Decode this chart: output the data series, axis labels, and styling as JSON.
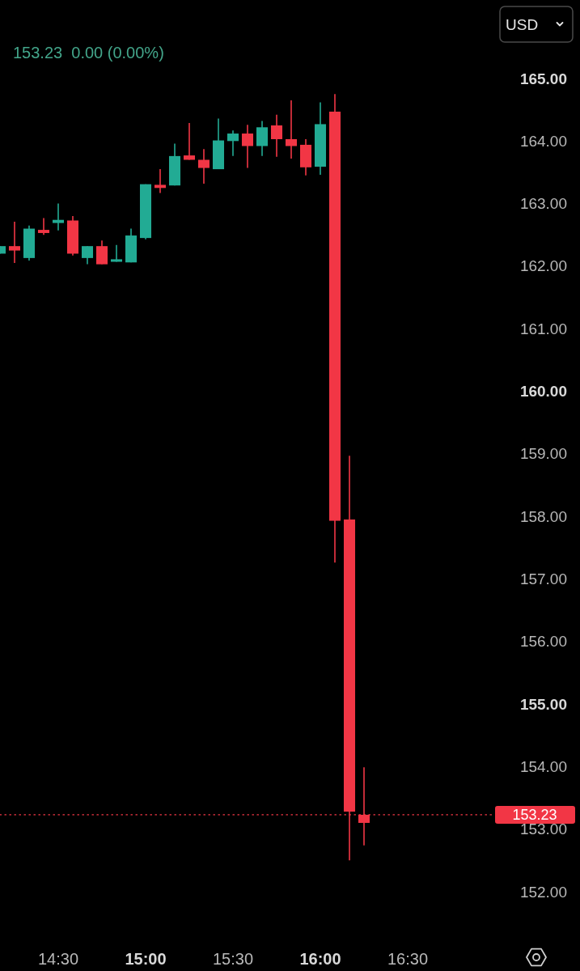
{
  "chart_data": {
    "type": "candlestick",
    "subtitle": "153.23  0.00 (0.00%)",
    "ylabel": "USD",
    "x": [
      14.1667,
      14.25,
      14.3333,
      14.4167,
      14.5,
      14.5833,
      14.6667,
      14.75,
      14.8333,
      14.9167,
      15,
      15.0833,
      15.1667,
      15.25,
      15.3333,
      15.4167,
      15.5,
      15.5833,
      15.6667,
      15.75,
      15.8333,
      15.9167,
      16,
      16.0833,
      16.1667,
      16.25
    ],
    "ohlc": [
      [
        162.2,
        162.32,
        162.2,
        162.32
      ],
      [
        162.32,
        162.71,
        162.05,
        162.25
      ],
      [
        162.13,
        162.65,
        162.09,
        162.6
      ],
      [
        162.58,
        162.77,
        162.5,
        162.53
      ],
      [
        162.69,
        163.0,
        162.57,
        162.74
      ],
      [
        162.73,
        162.8,
        162.17,
        162.2
      ],
      [
        162.13,
        162.32,
        162.03,
        162.32
      ],
      [
        162.32,
        162.41,
        162.03,
        162.03
      ],
      [
        162.07,
        162.34,
        162.07,
        162.11
      ],
      [
        162.06,
        162.6,
        162.06,
        162.49
      ],
      [
        162.45,
        163.31,
        162.43,
        163.31
      ],
      [
        163.3,
        163.55,
        163.17,
        163.25
      ],
      [
        163.29,
        163.96,
        163.29,
        163.76
      ],
      [
        163.77,
        164.29,
        163.7,
        163.7
      ],
      [
        163.7,
        163.87,
        163.32,
        163.57
      ],
      [
        163.55,
        164.36,
        163.55,
        164.01
      ],
      [
        164.0,
        164.17,
        163.76,
        164.12
      ],
      [
        164.12,
        164.26,
        163.57,
        163.92
      ],
      [
        163.92,
        164.32,
        163.76,
        164.22
      ],
      [
        164.25,
        164.42,
        163.75,
        164.03
      ],
      [
        164.03,
        164.65,
        163.72,
        163.92
      ],
      [
        163.94,
        164.03,
        163.45,
        163.58
      ],
      [
        163.59,
        164.62,
        163.46,
        164.27
      ],
      [
        164.47,
        164.75,
        157.26,
        157.93
      ],
      [
        157.95,
        158.97,
        152.5,
        153.28
      ],
      [
        153.23,
        153.99,
        152.74,
        153.1
      ]
    ],
    "colors": [
      "#22ab94",
      "#f23645",
      "#22ab94",
      "#f23645",
      "#22ab94",
      "#f23645",
      "#22ab94",
      "#f23645",
      "#22ab94",
      "#22ab94",
      "#22ab94",
      "#f23645",
      "#22ab94",
      "#f23645",
      "#f23645",
      "#22ab94",
      "#22ab94",
      "#f23645",
      "#22ab94",
      "#f23645",
      "#f23645",
      "#f23645",
      "#22ab94",
      "#f23645",
      "#f23645",
      "#f23645"
    ],
    "xlim": [
      14.1667,
      17
    ],
    "xticks": [
      {
        "value": 14.5,
        "label": "14:30"
      },
      {
        "value": 15,
        "label": "15:00"
      },
      {
        "value": 15.5,
        "label": "15:30"
      },
      {
        "value": 16,
        "label": "16:00"
      },
      {
        "value": 16.5,
        "label": "16:30"
      }
    ],
    "ylim": [
      152,
      165
    ],
    "yticks": [
      {
        "value": 152,
        "label": "152.00"
      },
      {
        "value": 153,
        "label": "153.00"
      },
      {
        "value": 154,
        "label": "154.00"
      },
      {
        "value": 155,
        "label": "155.00"
      },
      {
        "value": 156,
        "label": "156.00"
      },
      {
        "value": 157,
        "label": "157.00"
      },
      {
        "value": 158,
        "label": "158.00"
      },
      {
        "value": 159,
        "label": "159.00"
      },
      {
        "value": 160,
        "label": "160.00"
      },
      {
        "value": 161,
        "label": "161.00"
      },
      {
        "value": 162,
        "label": "162.00"
      },
      {
        "value": 163,
        "label": "163.00"
      },
      {
        "value": 164,
        "label": "164.00"
      },
      {
        "value": 165,
        "label": "165.00"
      }
    ],
    "ref_lines": [
      {
        "axis": "y",
        "value": 153.23,
        "label": "153.23",
        "color": "#f23645",
        "line_style": "dotted"
      }
    ]
  }
}
